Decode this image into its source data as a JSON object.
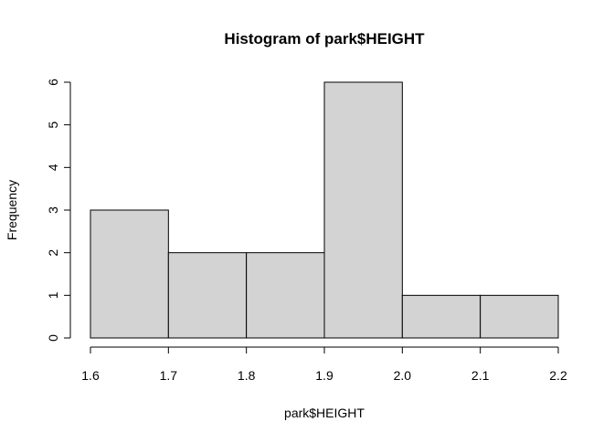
{
  "chart_data": {
    "type": "bar",
    "subtype": "histogram",
    "title": "Histogram of park$HEIGHT",
    "xlabel": "park$HEIGHT",
    "ylabel": "Frequency",
    "bins": [
      {
        "start": 1.6,
        "end": 1.7,
        "count": 3
      },
      {
        "start": 1.7,
        "end": 1.8,
        "count": 2
      },
      {
        "start": 1.8,
        "end": 1.9,
        "count": 2
      },
      {
        "start": 1.9,
        "end": 2.0,
        "count": 6
      },
      {
        "start": 2.0,
        "end": 2.1,
        "count": 1
      },
      {
        "start": 2.1,
        "end": 2.2,
        "count": 1
      }
    ],
    "xlim": [
      1.6,
      2.2
    ],
    "ylim": [
      0,
      6
    ],
    "x_ticks": [
      "1.6",
      "1.7",
      "1.8",
      "1.9",
      "2.0",
      "2.1",
      "2.2"
    ],
    "y_ticks": [
      "0",
      "1",
      "2",
      "3",
      "4",
      "5",
      "6"
    ],
    "grid": false,
    "bar_fill": "#d3d3d3",
    "bar_stroke": "#000000"
  }
}
